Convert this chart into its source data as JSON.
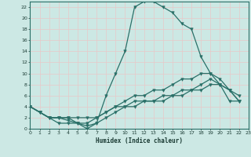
{
  "xlabel": "Humidex (Indice chaleur)",
  "bg_color": "#cce8e4",
  "grid_color": "#b8d8d4",
  "line_color": "#2a7068",
  "xlim": [
    0,
    23
  ],
  "ylim": [
    0,
    23
  ],
  "xticks": [
    0,
    1,
    2,
    3,
    4,
    5,
    6,
    7,
    8,
    9,
    10,
    11,
    12,
    13,
    14,
    15,
    16,
    17,
    18,
    19,
    20,
    21,
    22,
    23
  ],
  "yticks": [
    0,
    2,
    4,
    6,
    8,
    10,
    12,
    14,
    16,
    18,
    20,
    22
  ],
  "series": [
    {
      "x": [
        0,
        1,
        2,
        3,
        4,
        5,
        6,
        7,
        8,
        9,
        10,
        11,
        12,
        13,
        14,
        15,
        16,
        17,
        18,
        19,
        20,
        21,
        22
      ],
      "y": [
        4,
        3,
        2,
        1,
        1,
        1,
        0,
        1,
        6,
        10,
        14,
        22,
        23,
        23,
        22,
        21,
        19,
        18,
        13,
        10,
        8,
        5,
        5
      ]
    },
    {
      "x": [
        0,
        1,
        2,
        3,
        4,
        5,
        6,
        7,
        8,
        9,
        10,
        11,
        12,
        13,
        14,
        15,
        16,
        17,
        18,
        19,
        20,
        21,
        22
      ],
      "y": [
        4,
        3,
        2,
        2,
        2,
        2,
        2,
        2,
        3,
        4,
        5,
        6,
        6,
        7,
        7,
        8,
        9,
        9,
        10,
        10,
        9,
        7,
        6
      ]
    },
    {
      "x": [
        0,
        1,
        2,
        3,
        4,
        5,
        6,
        7,
        8,
        9,
        10,
        11,
        12,
        13,
        14,
        15,
        16,
        17,
        18,
        19,
        20,
        21,
        22
      ],
      "y": [
        4,
        3,
        2,
        2,
        2,
        1,
        1,
        2,
        3,
        4,
        4,
        5,
        5,
        5,
        6,
        6,
        7,
        7,
        8,
        9,
        8,
        7,
        5
      ]
    },
    {
      "x": [
        0,
        1,
        2,
        3,
        4,
        5,
        6,
        7,
        8,
        9,
        10,
        11,
        12,
        13,
        14,
        15,
        16,
        17,
        18,
        19,
        20,
        21,
        22
      ],
      "y": [
        4,
        3,
        2,
        2,
        1.5,
        1,
        0.5,
        1,
        2,
        3,
        4,
        4,
        5,
        5,
        5,
        6,
        6,
        7,
        7,
        8,
        8,
        7,
        5
      ]
    }
  ]
}
